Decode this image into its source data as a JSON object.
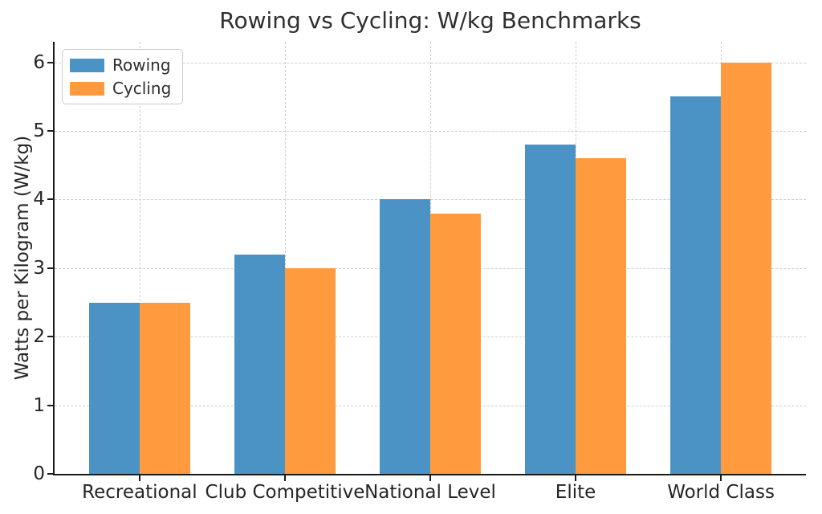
{
  "chart_data": {
    "type": "bar",
    "title": "Rowing vs Cycling: W/kg Benchmarks",
    "xlabel": "",
    "ylabel": "Watts per Kilogram (W/kg)",
    "categories": [
      "Recreational",
      "Club Competitive",
      "National Level",
      "Elite",
      "World Class"
    ],
    "series": [
      {
        "name": "Rowing",
        "color": "#4C93C5",
        "values": [
          2.5,
          3.2,
          4.0,
          4.8,
          5.5
        ]
      },
      {
        "name": "Cycling",
        "color": "#FF9A3E",
        "values": [
          2.5,
          3.0,
          3.8,
          4.6,
          6.0
        ]
      }
    ],
    "yticks": [
      0,
      1,
      2,
      3,
      4,
      5,
      6
    ],
    "ylim": [
      0,
      6.3
    ],
    "bar_width": 0.35,
    "grid": "dashed, both axes",
    "legend_position": "upper left",
    "style": {
      "grid_color": "#cdcdcd",
      "spine_color": "#1b1b1b",
      "text_color": "#262626",
      "background": "#ffffff"
    }
  }
}
